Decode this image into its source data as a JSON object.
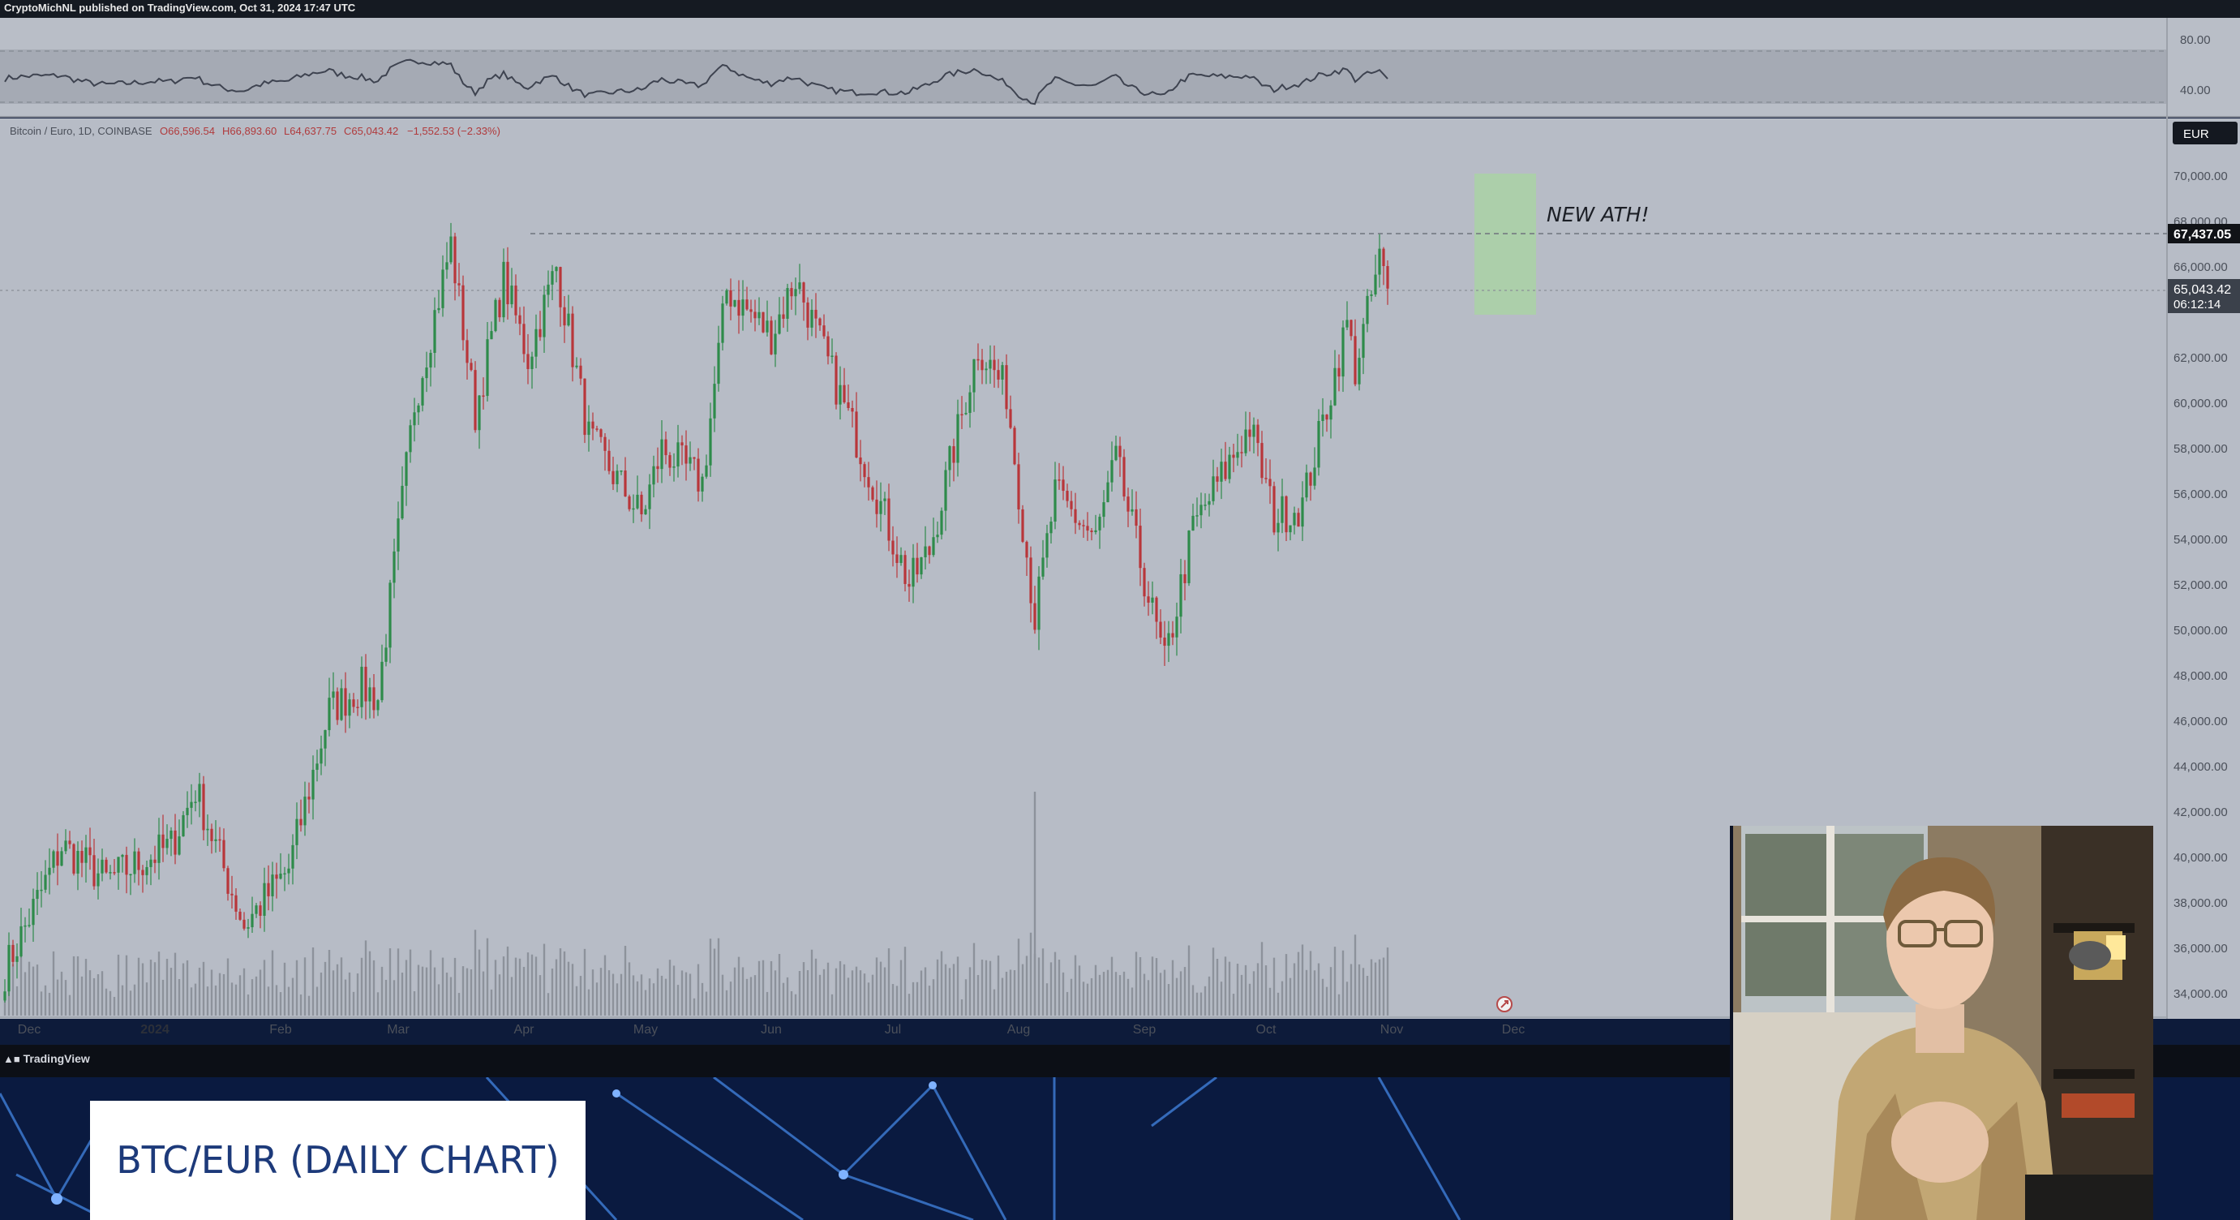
{
  "header": {
    "published_line": "CryptoMichNL published on TradingView.com, Oct 31, 2024 17:47 UTC"
  },
  "symbol_info": {
    "name": "Bitcoin / Euro, 1D, COINBASE",
    "open": "O66,596.54",
    "high": "H66,893.60",
    "low": "L64,637.75",
    "close": "C65,043.42",
    "change": "−1,552.53 (−2.33%)"
  },
  "currency_badge": "EUR",
  "price_tags": {
    "ath_level": "67,437.05",
    "last_price": "65,043.42",
    "countdown": "06:12:14"
  },
  "annotation": {
    "text": "NEW ATH!"
  },
  "rsi_axis": {
    "labels": [
      "80.00",
      "40.00"
    ]
  },
  "price_axis": {
    "labels": [
      "70,000.00",
      "68,000.00",
      "66,000.00",
      "62,000.00",
      "60,000.00",
      "58,000.00",
      "56,000.00",
      "54,000.00",
      "52,000.00",
      "50,000.00",
      "48,000.00",
      "46,000.00",
      "44,000.00",
      "42,000.00",
      "40,000.00",
      "38,000.00",
      "36,000.00",
      "34,000.00"
    ]
  },
  "time_axis": {
    "labels": [
      "Dec",
      "2024",
      "Feb",
      "Mar",
      "Apr",
      "May",
      "Jun",
      "Jul",
      "Aug",
      "Sep",
      "Oct",
      "Nov",
      "Dec"
    ]
  },
  "footer": {
    "brand": "TradingView"
  },
  "overlay": {
    "title": "BTC/EUR (DAILY CHART)"
  },
  "colors": {
    "up": "#2e8b4a",
    "down": "#b8363a",
    "ath_box": "#a9d6a1",
    "panel_bg": "#b7bcc6",
    "banner_bg": "#0a1a40"
  },
  "chart_data": {
    "type": "candlestick",
    "symbol": "Bitcoin / Euro",
    "timeframe": "1D",
    "exchange": "COINBASE",
    "y_range": [
      33000,
      72000
    ],
    "rsi_range_shown": [
      40,
      80
    ],
    "ath_price": 67437.05,
    "last_price": 65043.42,
    "waypoints": [
      {
        "date": "2023-11-25",
        "price": 35000
      },
      {
        "date": "2023-12-04",
        "price": 38500
      },
      {
        "date": "2023-12-09",
        "price": 40500
      },
      {
        "date": "2023-12-20",
        "price": 39000
      },
      {
        "date": "2024-01-05",
        "price": 40500
      },
      {
        "date": "2024-01-11",
        "price": 43000
      },
      {
        "date": "2024-01-23",
        "price": 37000
      },
      {
        "date": "2024-02-03",
        "price": 39500
      },
      {
        "date": "2024-02-13",
        "price": 46500
      },
      {
        "date": "2024-02-21",
        "price": 47500
      },
      {
        "date": "2024-02-25",
        "price": 47000
      },
      {
        "date": "2024-03-05",
        "price": 60000
      },
      {
        "date": "2024-03-14",
        "price": 67000
      },
      {
        "date": "2024-03-20",
        "price": 59500
      },
      {
        "date": "2024-03-27",
        "price": 65500
      },
      {
        "date": "2024-04-02",
        "price": 62000
      },
      {
        "date": "2024-04-09",
        "price": 66000
      },
      {
        "date": "2024-04-17",
        "price": 58500
      },
      {
        "date": "2024-04-30",
        "price": 55000
      },
      {
        "date": "2024-05-05",
        "price": 58000
      },
      {
        "date": "2024-05-15",
        "price": 56500
      },
      {
        "date": "2024-05-21",
        "price": 65000
      },
      {
        "date": "2024-06-01",
        "price": 63000
      },
      {
        "date": "2024-06-07",
        "price": 65500
      },
      {
        "date": "2024-06-24",
        "price": 57500
      },
      {
        "date": "2024-07-05",
        "price": 52000
      },
      {
        "date": "2024-07-10",
        "price": 53500
      },
      {
        "date": "2024-07-22",
        "price": 62500
      },
      {
        "date": "2024-07-29",
        "price": 60500
      },
      {
        "date": "2024-08-05",
        "price": 50500
      },
      {
        "date": "2024-08-10",
        "price": 56000
      },
      {
        "date": "2024-08-20",
        "price": 54000
      },
      {
        "date": "2024-08-25",
        "price": 57500
      },
      {
        "date": "2024-09-06",
        "price": 48500
      },
      {
        "date": "2024-09-13",
        "price": 54500
      },
      {
        "date": "2024-09-27",
        "price": 59000
      },
      {
        "date": "2024-10-03",
        "price": 55000
      },
      {
        "date": "2024-10-10",
        "price": 55500
      },
      {
        "date": "2024-10-21",
        "price": 63500
      },
      {
        "date": "2024-10-23",
        "price": 61500
      },
      {
        "date": "2024-10-29",
        "price": 66300
      },
      {
        "date": "2024-10-31",
        "price": 65043
      }
    ]
  }
}
